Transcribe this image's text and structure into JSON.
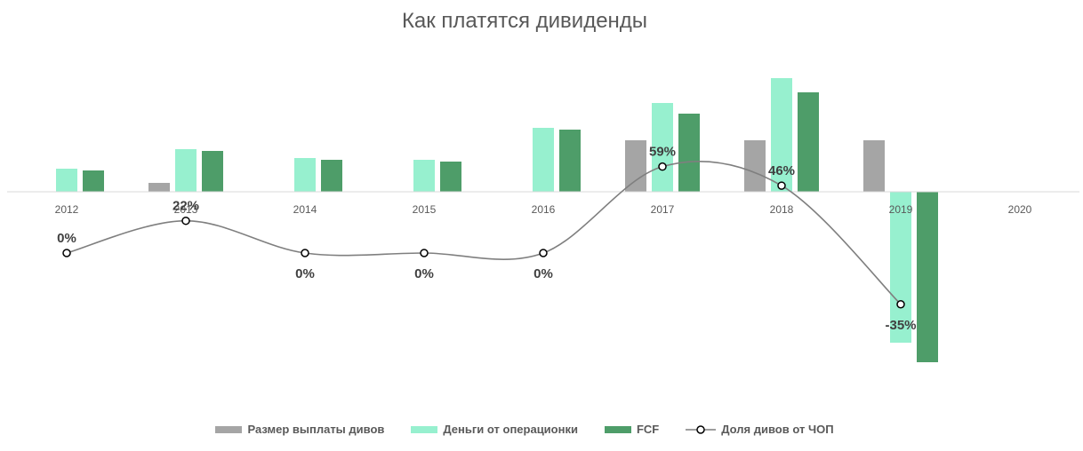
{
  "chart_data": {
    "type": "bar",
    "title": "Как платятся дивиденды",
    "categories": [
      "2012",
      "2013",
      "2014",
      "2015",
      "2016",
      "2017",
      "2018",
      "2019",
      "2020"
    ],
    "series": [
      {
        "name": "Размер выплаты дивов",
        "kind": "bar",
        "color": "#a5a5a5",
        "values": [
          0,
          5,
          0,
          0,
          0,
          29,
          29,
          29,
          0
        ]
      },
      {
        "name": "Деньги от операционки",
        "kind": "bar",
        "color": "#97f0cf",
        "values": [
          13,
          24,
          19,
          18,
          36,
          50,
          64,
          -85,
          0
        ]
      },
      {
        "name": "FCF",
        "kind": "bar",
        "color": "#4e9d69",
        "values": [
          12,
          23,
          18,
          17,
          35,
          44,
          56,
          -96,
          0
        ]
      },
      {
        "name": "Доля дивов от ЧОП",
        "kind": "line",
        "color": "#7f7f7f",
        "values": [
          0,
          22,
          0,
          0,
          0,
          59,
          46,
          -35,
          null
        ],
        "labels": [
          "0%",
          "22%",
          "0%",
          "0%",
          "0%",
          "59%",
          "46%",
          "-35%",
          ""
        ]
      }
    ],
    "legend_position": "bottom",
    "grid": false
  }
}
